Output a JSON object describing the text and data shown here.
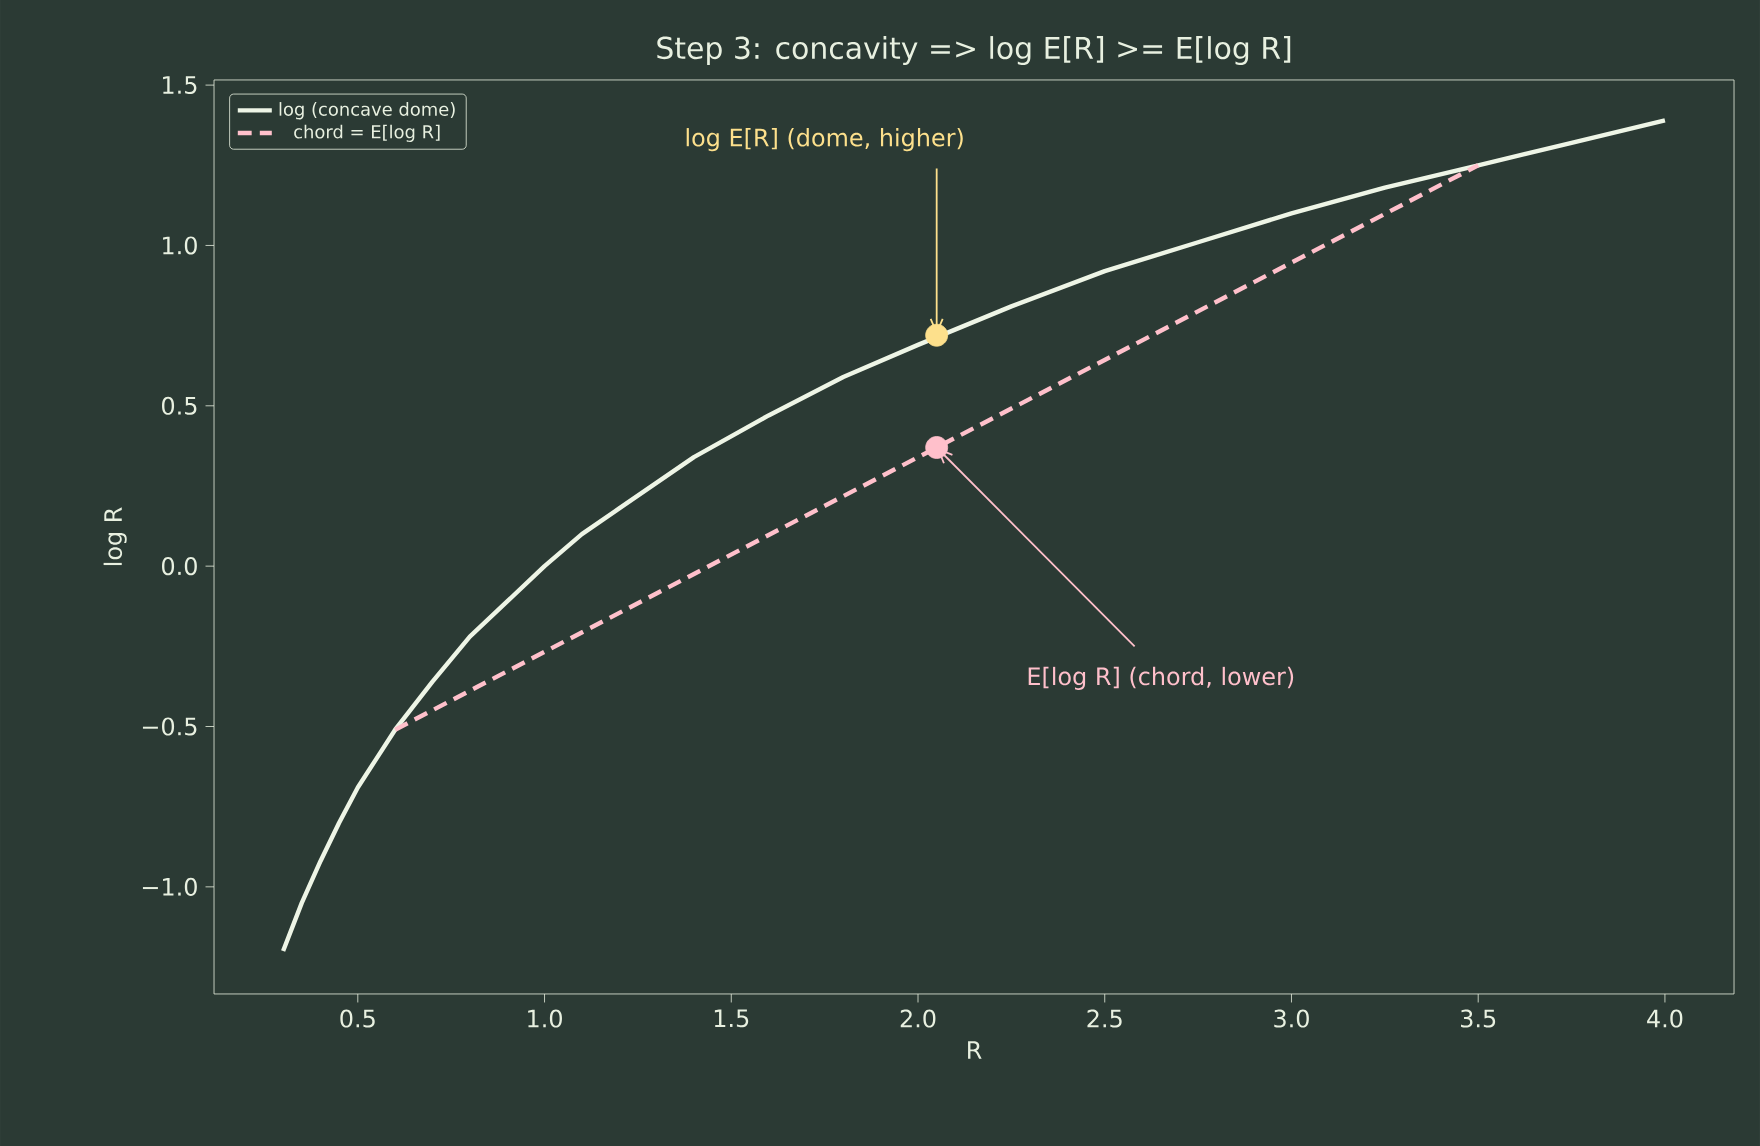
{
  "chart_data": {
    "type": "line",
    "title": "Step 3: concavity => log E[R] >= E[log R]",
    "xlabel": "R",
    "ylabel": "log R",
    "xlim": [
      0.115,
      4.185
    ],
    "ylim": [
      -1.334,
      1.516
    ],
    "xticks": [
      {
        "value": 0.5,
        "label": "0.5"
      },
      {
        "value": 1.0,
        "label": "1.0"
      },
      {
        "value": 1.5,
        "label": "1.5"
      },
      {
        "value": 2.0,
        "label": "2.0"
      },
      {
        "value": 2.5,
        "label": "2.5"
      },
      {
        "value": 3.0,
        "label": "3.0"
      },
      {
        "value": 3.5,
        "label": "3.5"
      },
      {
        "value": 4.0,
        "label": "4.0"
      }
    ],
    "yticks": [
      {
        "value": -1.0,
        "label": "−1.0"
      },
      {
        "value": -0.5,
        "label": "−0.5"
      },
      {
        "value": 0.0,
        "label": "0.0"
      },
      {
        "value": 0.5,
        "label": "0.5"
      },
      {
        "value": 1.0,
        "label": "1.0"
      },
      {
        "value": 1.5,
        "label": "1.5"
      }
    ],
    "grid": false,
    "legend": "top left",
    "series": [
      {
        "name": "log (concave dome)",
        "color": "#eef5e6",
        "line_style": "solid",
        "x": [
          0.3,
          0.35,
          0.4,
          0.45,
          0.5,
          0.55,
          0.6,
          0.7,
          0.8,
          0.9,
          1.0,
          1.1,
          1.2,
          1.4,
          1.6,
          1.8,
          2.0,
          2.25,
          2.5,
          2.75,
          3.0,
          3.25,
          3.5,
          3.75,
          4.0
        ],
        "values": [
          -1.2,
          -1.05,
          -0.92,
          -0.8,
          -0.69,
          -0.6,
          -0.51,
          -0.36,
          -0.22,
          -0.11,
          0.0,
          0.1,
          0.18,
          0.34,
          0.47,
          0.59,
          0.69,
          0.81,
          0.92,
          1.01,
          1.1,
          1.18,
          1.25,
          1.32,
          1.39
        ]
      },
      {
        "name": "chord = E[log R]",
        "color": "#ffc0cb",
        "line_style": "dashed",
        "x": [
          0.6,
          3.5
        ],
        "values": [
          -0.51,
          1.25
        ]
      },
      {
        "type": "scatter",
        "color": "#fde08c",
        "x": [
          2.05
        ],
        "values": [
          0.72
        ]
      },
      {
        "type": "scatter",
        "color": "#ffc0cb",
        "x": [
          2.05
        ],
        "values": [
          0.37
        ]
      }
    ],
    "annotations": [
      {
        "text": "log E[R] (dome, higher)",
        "x": 2.05,
        "y": 0.72
      },
      {
        "text": "E[log R] (chord, lower)",
        "x": 2.05,
        "y": 0.37
      }
    ]
  }
}
